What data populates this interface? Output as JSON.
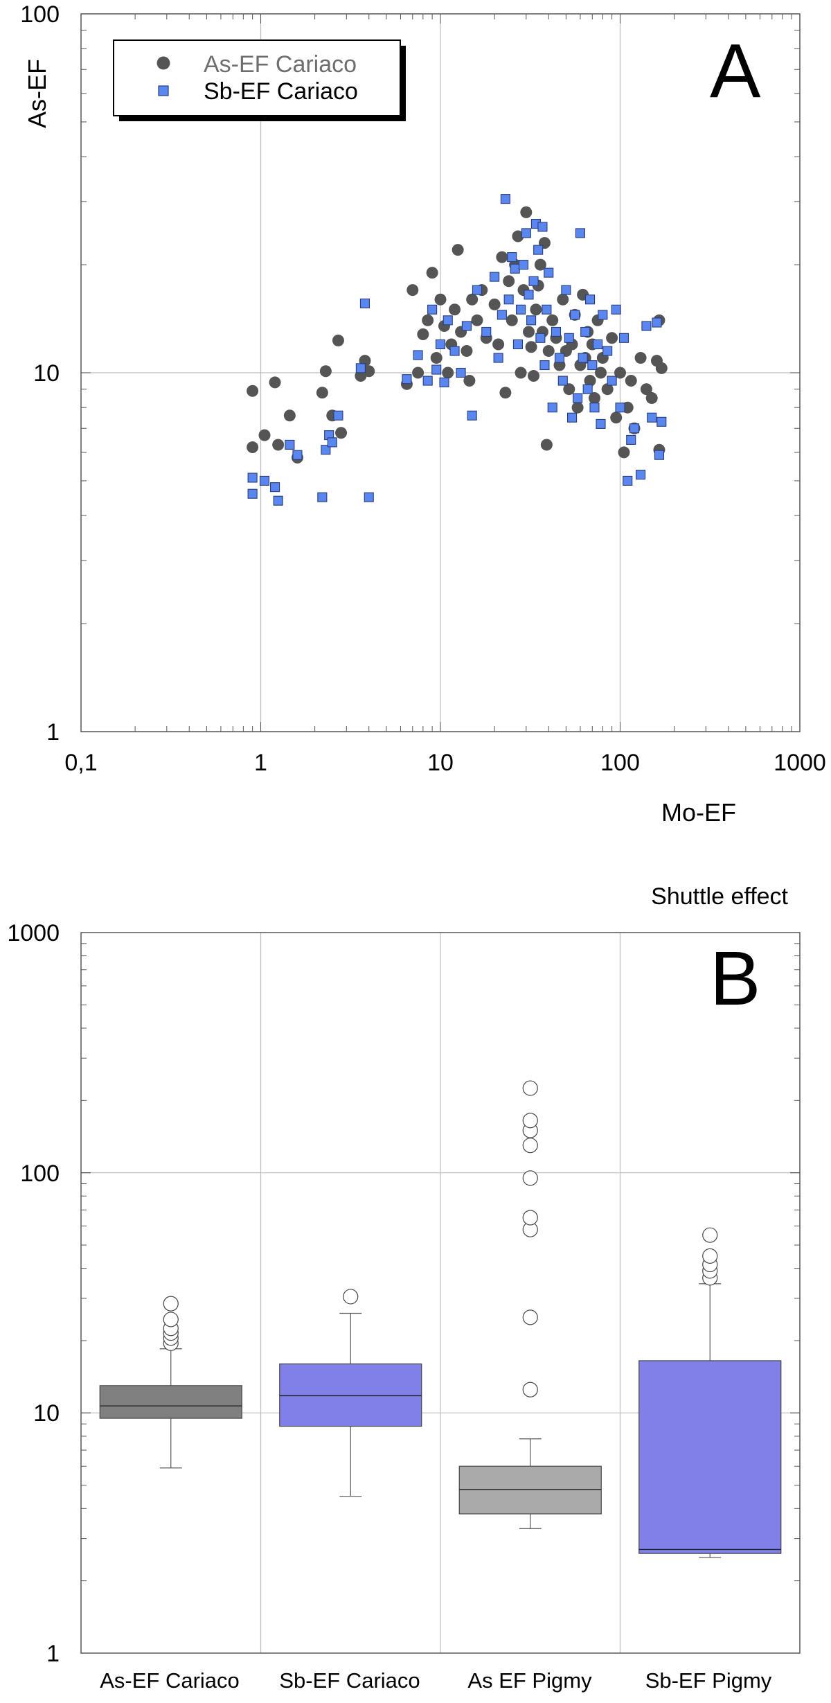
{
  "chart_data": [
    {
      "panel": "A",
      "type": "scatter",
      "title": "",
      "xlabel": "Mo-EF",
      "ylabel": "As-EF",
      "xscale": "log",
      "yscale": "log",
      "xlim": [
        0.1,
        1000
      ],
      "ylim": [
        1,
        100
      ],
      "x_tick_labels": [
        "0,1",
        "1",
        "10",
        "100",
        "1000"
      ],
      "y_tick_labels": [
        "1",
        "10",
        "100"
      ],
      "grid": true,
      "legend_position": "top-left",
      "series": [
        {
          "name": "As-EF Cariaco",
          "marker": "circle",
          "color": "#555555",
          "points": [
            [
              0.9,
              8.9
            ],
            [
              0.9,
              6.2
            ],
            [
              1.05,
              6.7
            ],
            [
              1.2,
              9.4
            ],
            [
              1.25,
              6.3
            ],
            [
              1.45,
              7.6
            ],
            [
              1.6,
              5.8
            ],
            [
              2.2,
              8.8
            ],
            [
              2.3,
              10.1
            ],
            [
              2.5,
              7.6
            ],
            [
              2.7,
              12.3
            ],
            [
              2.8,
              6.8
            ],
            [
              3.6,
              9.8
            ],
            [
              3.8,
              10.8
            ],
            [
              4.0,
              10.1
            ],
            [
              6.5,
              9.3
            ],
            [
              7.0,
              17.0
            ],
            [
              7.5,
              10.0
            ],
            [
              8.0,
              12.8
            ],
            [
              8.5,
              14.0
            ],
            [
              9.0,
              19.0
            ],
            [
              9.5,
              11.0
            ],
            [
              10.0,
              16.0
            ],
            [
              10.5,
              13.5
            ],
            [
              11.0,
              10.0
            ],
            [
              11.5,
              12.0
            ],
            [
              12.0,
              15.0
            ],
            [
              12.5,
              22.0
            ],
            [
              13.0,
              13.0
            ],
            [
              14.0,
              11.5
            ],
            [
              14.5,
              9.5
            ],
            [
              15.0,
              16.0
            ],
            [
              16.0,
              14.0
            ],
            [
              17.0,
              17.0
            ],
            [
              18.0,
              12.5
            ],
            [
              20.0,
              15.5
            ],
            [
              21.0,
              12.0
            ],
            [
              22.0,
              21.0
            ],
            [
              23.0,
              8.8
            ],
            [
              24.0,
              18.0
            ],
            [
              25.0,
              14.0
            ],
            [
              26.0,
              20.0
            ],
            [
              27.0,
              24.0
            ],
            [
              28.0,
              10.0
            ],
            [
              29.0,
              17.0
            ],
            [
              30.0,
              28.0
            ],
            [
              31.0,
              13.0
            ],
            [
              32.0,
              11.8
            ],
            [
              33.0,
              9.8
            ],
            [
              34.0,
              15.0
            ],
            [
              35.0,
              17.5
            ],
            [
              36.0,
              20.0
            ],
            [
              37.0,
              13.0
            ],
            [
              38.0,
              23.0
            ],
            [
              39.0,
              6.3
            ],
            [
              40.0,
              11.5
            ],
            [
              42.0,
              14.0
            ],
            [
              44.0,
              12.5
            ],
            [
              46.0,
              10.5
            ],
            [
              48.0,
              16.0
            ],
            [
              50.0,
              11.5
            ],
            [
              52.0,
              9.0
            ],
            [
              54.0,
              12.0
            ],
            [
              56.0,
              14.5
            ],
            [
              58.0,
              8.0
            ],
            [
              60.0,
              10.5
            ],
            [
              62.0,
              16.5
            ],
            [
              64.0,
              11.0
            ],
            [
              66.0,
              13.0
            ],
            [
              68.0,
              9.5
            ],
            [
              70.0,
              12.0
            ],
            [
              72.0,
              8.5
            ],
            [
              75.0,
              14.0
            ],
            [
              78.0,
              10.0
            ],
            [
              80.0,
              11.0
            ],
            [
              85.0,
              9.0
            ],
            [
              90.0,
              12.5
            ],
            [
              95.0,
              7.5
            ],
            [
              100.0,
              10.0
            ],
            [
              105.0,
              6.0
            ],
            [
              110.0,
              8.0
            ],
            [
              115.0,
              9.5
            ],
            [
              120.0,
              7.0
            ],
            [
              130.0,
              11.0
            ],
            [
              140.0,
              9.0
            ],
            [
              150.0,
              8.5
            ],
            [
              160.0,
              10.8
            ],
            [
              165.0,
              6.1
            ],
            [
              170.0,
              10.3
            ],
            [
              165.0,
              14.0
            ]
          ]
        },
        {
          "name": "Sb-EF Cariaco",
          "marker": "square",
          "color": "#5a86f0",
          "points": [
            [
              0.9,
              5.1
            ],
            [
              0.9,
              4.6
            ],
            [
              1.05,
              5.0
            ],
            [
              1.2,
              4.8
            ],
            [
              1.25,
              4.4
            ],
            [
              1.45,
              6.3
            ],
            [
              1.6,
              5.9
            ],
            [
              2.2,
              4.5
            ],
            [
              2.3,
              6.1
            ],
            [
              2.4,
              6.7
            ],
            [
              2.5,
              6.4
            ],
            [
              2.7,
              7.6
            ],
            [
              3.6,
              10.3
            ],
            [
              3.8,
              15.6
            ],
            [
              4.0,
              4.5
            ],
            [
              6.5,
              9.6
            ],
            [
              7.5,
              11.2
            ],
            [
              8.5,
              9.5
            ],
            [
              9.0,
              15.0
            ],
            [
              9.5,
              10.2
            ],
            [
              10.0,
              12.0
            ],
            [
              10.5,
              9.4
            ],
            [
              11.0,
              14.0
            ],
            [
              12.0,
              11.5
            ],
            [
              13.0,
              10.0
            ],
            [
              14.0,
              13.5
            ],
            [
              15.0,
              7.6
            ],
            [
              16.0,
              17.0
            ],
            [
              18.0,
              13.0
            ],
            [
              20.0,
              18.5
            ],
            [
              21.0,
              11.0
            ],
            [
              22.0,
              14.5
            ],
            [
              23.0,
              30.5
            ],
            [
              24.0,
              16.0
            ],
            [
              25.0,
              21.0
            ],
            [
              26.0,
              19.5
            ],
            [
              27.0,
              12.0
            ],
            [
              28.0,
              15.0
            ],
            [
              29.0,
              20.0
            ],
            [
              30.0,
              24.5
            ],
            [
              31.0,
              16.5
            ],
            [
              32.0,
              14.0
            ],
            [
              33.0,
              18.0
            ],
            [
              34.0,
              26.0
            ],
            [
              35.0,
              22.0
            ],
            [
              36.0,
              12.5
            ],
            [
              37.0,
              25.5
            ],
            [
              38.0,
              10.5
            ],
            [
              39.0,
              15.0
            ],
            [
              40.0,
              19.0
            ],
            [
              42.0,
              8.0
            ],
            [
              44.0,
              13.0
            ],
            [
              46.0,
              11.0
            ],
            [
              48.0,
              9.5
            ],
            [
              50.0,
              17.0
            ],
            [
              52.0,
              12.5
            ],
            [
              54.0,
              7.5
            ],
            [
              56.0,
              14.5
            ],
            [
              58.0,
              8.5
            ],
            [
              60.0,
              24.5
            ],
            [
              62.0,
              11.0
            ],
            [
              64.0,
              13.0
            ],
            [
              66.0,
              9.0
            ],
            [
              68.0,
              16.0
            ],
            [
              70.0,
              10.5
            ],
            [
              72.0,
              8.0
            ],
            [
              75.0,
              12.0
            ],
            [
              78.0,
              7.2
            ],
            [
              80.0,
              14.5
            ],
            [
              85.0,
              11.5
            ],
            [
              90.0,
              9.5
            ],
            [
              95.0,
              15.0
            ],
            [
              100.0,
              8.0
            ],
            [
              105.0,
              12.5
            ],
            [
              110.0,
              5.0
            ],
            [
              115.0,
              6.5
            ],
            [
              120.0,
              7.0
            ],
            [
              130.0,
              5.2
            ],
            [
              140.0,
              13.5
            ],
            [
              150.0,
              7.5
            ],
            [
              160.0,
              13.8
            ],
            [
              165.0,
              5.9
            ],
            [
              170.0,
              7.3
            ]
          ]
        }
      ],
      "annotation": "A"
    },
    {
      "panel": "B",
      "type": "box",
      "title": "Shuttle effect",
      "xlabel": "",
      "ylabel": "",
      "yscale": "log",
      "ylim": [
        1,
        1000
      ],
      "y_tick_labels": [
        "1",
        "10",
        "100",
        "1000"
      ],
      "grid": true,
      "categories": [
        "As-EF Cariaco",
        "Sb-EF Cariaco",
        "As EF Pigmy",
        "Sb-EF Pigmy"
      ],
      "boxes": [
        {
          "name": "As-EF Cariaco",
          "color": "#808080",
          "q1": 9.5,
          "median": 10.7,
          "q3": 13.0,
          "whisker_low": 5.9,
          "whisker_high": 18.5,
          "outliers": [
            19.5,
            20.5,
            21.5,
            22.5,
            24.5,
            28.5
          ]
        },
        {
          "name": "Sb-EF Cariaco",
          "color": "#8080e8",
          "q1": 8.8,
          "median": 11.8,
          "q3": 16.0,
          "whisker_low": 4.5,
          "whisker_high": 26.0,
          "outliers": [
            30.5
          ]
        },
        {
          "name": "As EF Pigmy",
          "color": "#aaaaaa",
          "q1": 3.8,
          "median": 4.8,
          "q3": 6.0,
          "whisker_low": 3.3,
          "whisker_high": 7.8,
          "outliers": [
            12.5,
            25.0,
            58.0,
            65.0,
            95.0,
            130.0,
            150.0,
            165.0,
            225.0
          ]
        },
        {
          "name": "Sb-EF Pigmy",
          "color": "#8080e8",
          "q1": 2.6,
          "median": 2.7,
          "q3": 16.5,
          "whisker_low": 2.5,
          "whisker_high": 34.5,
          "outliers": [
            36.5,
            39.0,
            41.5,
            45.0,
            55.0
          ]
        }
      ],
      "annotation": "B"
    }
  ]
}
